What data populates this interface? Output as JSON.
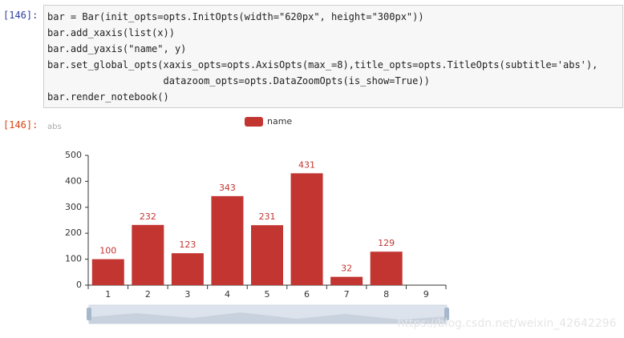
{
  "input_cell": {
    "prompt": "[146]:",
    "lines": [
      "bar = Bar(init_opts=opts.InitOpts(width=\"620px\", height=\"300px\"))",
      "bar.add_xaxis(list(x))",
      "bar.add_yaxis(\"name\", y)",
      "bar.set_global_opts(xaxis_opts=opts.AxisOpts(max_=8),title_opts=opts.TitleOpts(subtitle='abs'),",
      "                    datazoom_opts=opts.DataZoomOpts(is_show=True))",
      "bar.render_notebook()"
    ]
  },
  "output_cell": {
    "prompt": "[146]:"
  },
  "watermark": "https://blog.csdn.net/weixin_42642296",
  "chart_data": {
    "type": "bar",
    "subtitle": "abs",
    "categories": [
      "1",
      "2",
      "3",
      "4",
      "5",
      "6",
      "7",
      "8",
      "9"
    ],
    "series": [
      {
        "name": "name",
        "color": "#c23531",
        "values": [
          100,
          232,
          123,
          343,
          231,
          431,
          32,
          129,
          null
        ]
      }
    ],
    "ylim": [
      0,
      500
    ],
    "yticks": [
      0,
      100,
      200,
      300,
      400,
      500
    ],
    "legend": "top",
    "grid": false
  }
}
